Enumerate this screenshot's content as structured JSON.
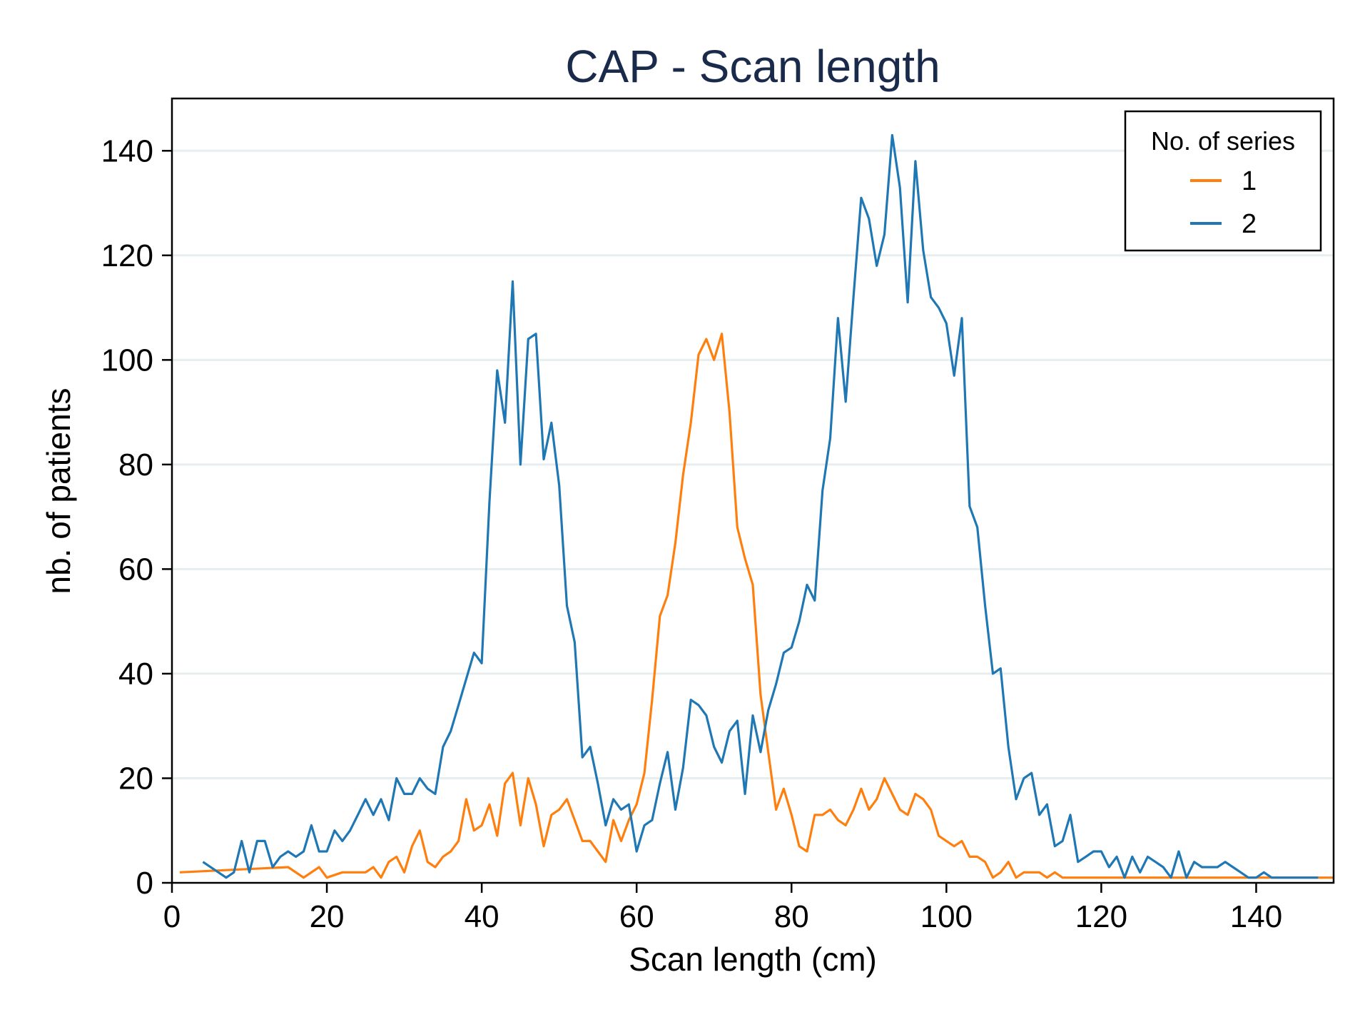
{
  "chart_data": {
    "type": "line",
    "title": "CAP - Scan length",
    "xlabel": "Scan length (cm)",
    "ylabel": "nb. of patients",
    "xlim": [
      0,
      150
    ],
    "ylim": [
      0,
      150
    ],
    "xticks": [
      0,
      20,
      40,
      60,
      80,
      100,
      120,
      140
    ],
    "yticks": [
      0,
      20,
      40,
      60,
      80,
      100,
      120,
      140
    ],
    "grid": "horizontal",
    "legend": {
      "title": "No. of series",
      "placement": "top-right"
    },
    "series": [
      {
        "name": "1",
        "color": "#ff7f0e",
        "x": [
          1,
          15,
          17,
          19,
          20,
          22,
          25,
          26,
          27,
          28,
          29,
          30,
          31,
          32,
          33,
          34,
          35,
          36,
          37,
          38,
          39,
          40,
          41,
          42,
          43,
          44,
          45,
          46,
          47,
          48,
          49,
          50,
          51,
          52,
          53,
          54,
          55,
          56,
          57,
          58,
          59,
          60,
          61,
          62,
          63,
          64,
          65,
          66,
          67,
          68,
          69,
          70,
          71,
          72,
          73,
          74,
          75,
          76,
          77,
          78,
          79,
          80,
          81,
          82,
          83,
          84,
          85,
          86,
          87,
          88,
          89,
          90,
          91,
          92,
          93,
          94,
          95,
          96,
          97,
          98,
          99,
          100,
          101,
          102,
          103,
          104,
          105,
          106,
          107,
          108,
          109,
          110,
          111,
          112,
          113,
          114,
          115,
          116,
          150
        ],
        "y": [
          2,
          3,
          1,
          3,
          1,
          2,
          2,
          3,
          1,
          4,
          5,
          2,
          7,
          10,
          4,
          3,
          5,
          6,
          8,
          16,
          10,
          11,
          15,
          9,
          19,
          21,
          11,
          20,
          15,
          7,
          13,
          14,
          16,
          12,
          8,
          8,
          6,
          4,
          12,
          8,
          12,
          15,
          21,
          35,
          51,
          55,
          65,
          78,
          88,
          101,
          104,
          100,
          105,
          90,
          68,
          62,
          57,
          36,
          25,
          14,
          18,
          13,
          7,
          6,
          13,
          13,
          14,
          12,
          11,
          14,
          18,
          14,
          16,
          20,
          17,
          14,
          13,
          17,
          16,
          14,
          9,
          8,
          7,
          8,
          5,
          5,
          4,
          1,
          2,
          4,
          1,
          2,
          2,
          2,
          1,
          2,
          1,
          1,
          1
        ]
      },
      {
        "name": "2",
        "color": "#1f77b4",
        "x": [
          4,
          7,
          8,
          9,
          10,
          11,
          12,
          13,
          14,
          15,
          16,
          17,
          18,
          19,
          20,
          21,
          22,
          23,
          24,
          25,
          26,
          27,
          28,
          29,
          30,
          31,
          32,
          33,
          34,
          35,
          36,
          37,
          38,
          39,
          40,
          41,
          42,
          43,
          44,
          45,
          46,
          47,
          48,
          49,
          50,
          51,
          52,
          53,
          54,
          55,
          56,
          57,
          58,
          59,
          60,
          61,
          62,
          63,
          64,
          65,
          66,
          67,
          68,
          69,
          70,
          71,
          72,
          73,
          74,
          75,
          76,
          77,
          78,
          79,
          80,
          81,
          82,
          83,
          84,
          85,
          86,
          87,
          88,
          89,
          90,
          91,
          92,
          93,
          94,
          95,
          96,
          97,
          98,
          99,
          100,
          101,
          102,
          103,
          104,
          105,
          106,
          107,
          108,
          109,
          110,
          111,
          112,
          113,
          114,
          115,
          116,
          117,
          118,
          119,
          120,
          121,
          122,
          123,
          124,
          125,
          126,
          127,
          128,
          129,
          130,
          131,
          132,
          133,
          134,
          135,
          136,
          137,
          138,
          139,
          140,
          141,
          142,
          148
        ],
        "y": [
          4,
          1,
          2,
          8,
          2,
          8,
          8,
          3,
          5,
          6,
          5,
          6,
          11,
          6,
          6,
          10,
          8,
          10,
          13,
          16,
          13,
          16,
          12,
          20,
          17,
          17,
          20,
          18,
          17,
          26,
          29,
          34,
          39,
          44,
          42,
          73,
          98,
          88,
          115,
          80,
          104,
          105,
          81,
          88,
          76,
          53,
          46,
          24,
          26,
          19,
          11,
          16,
          14,
          15,
          6,
          11,
          12,
          19,
          25,
          14,
          22,
          35,
          34,
          32,
          26,
          23,
          29,
          31,
          17,
          32,
          25,
          33,
          38,
          44,
          45,
          50,
          57,
          54,
          75,
          85,
          108,
          92,
          112,
          131,
          127,
          118,
          124,
          143,
          133,
          111,
          138,
          121,
          112,
          110,
          107,
          97,
          108,
          72,
          68,
          53,
          40,
          41,
          26,
          16,
          20,
          21,
          13,
          15,
          7,
          8,
          13,
          4,
          5,
          6,
          6,
          3,
          5,
          1,
          5,
          2,
          5,
          4,
          3,
          1,
          6,
          1,
          4,
          3,
          3,
          3,
          4,
          3,
          2,
          1,
          1,
          2,
          1,
          1
        ]
      }
    ]
  }
}
